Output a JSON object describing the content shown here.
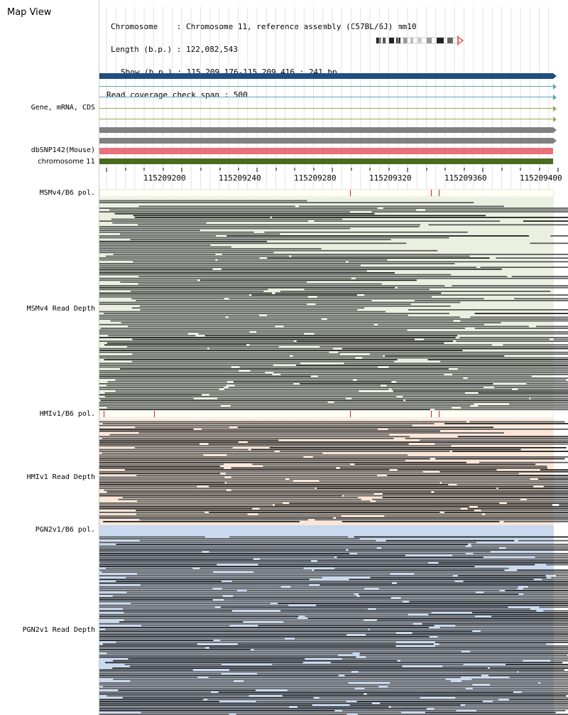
{
  "app": {
    "title": "Map View"
  },
  "info": {
    "chromosome_label": "Chromosome   ",
    "chromosome_value": "Chromosome 11, reference assembly (C57BL/6J) mm10",
    "length_label": "Length (b.p.)",
    "length_value": "122,082,543",
    "show_label": "Show (b.p.)",
    "show_value": "115,209,176-115,209,416 : 241 bp",
    "coverage_label": "Read coverage check span",
    "coverage_value": "500"
  },
  "tracks": {
    "gene": "Gene, mRNA, CDS",
    "dbsnp": "dbSNP142(Mouse)",
    "chromosome": "chromosome 11"
  },
  "ruler": {
    "ticks": [
      "115209200",
      "115209240",
      "115209280",
      "115209320",
      "115209360",
      "115209400"
    ]
  },
  "panels": [
    {
      "pol_label": "MSMv4/B6 pol.",
      "depth_label": "MSMv4 Read Depth"
    },
    {
      "pol_label": "HMIv1/B6 pol.",
      "depth_label": "HMIv1 Read Depth"
    },
    {
      "pol_label": "PGN2v1/B6 pol.",
      "depth_label": "PGN2v1 Read Depth"
    }
  ],
  "colors": {
    "gene_main": "#1f4e82",
    "transcript": "#5aa6b8",
    "transcript2": "#9aaa55",
    "cds_gray": "#808080",
    "dbsnp": "#e8707a",
    "chromosome": "#4a6b1e",
    "msm_bg": "#eaf0e0",
    "hmi_bg": "#fbe6d8",
    "pgn_bg": "#c9d9ef",
    "read": "#5a5a5a",
    "read_dark": "#222222"
  }
}
